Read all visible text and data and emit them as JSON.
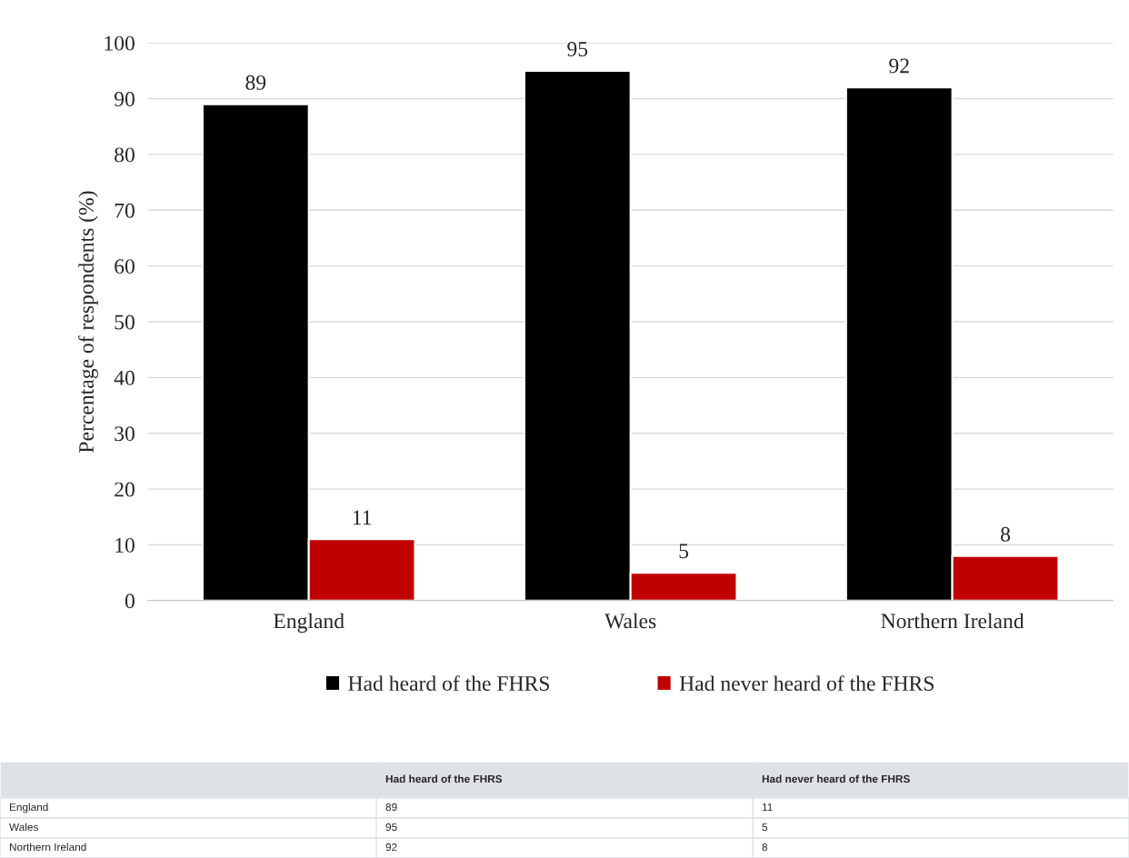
{
  "chart_data": [
    {
      "type": "bar",
      "ylabel": "Percentage of respondents (%)",
      "categories": [
        "England",
        "Wales",
        "Northern Ireland"
      ],
      "series": [
        {
          "name": "Had heard of the FHRS",
          "color": "#000000",
          "values": [
            89,
            95,
            92
          ]
        },
        {
          "name": "Had never heard of the FHRS",
          "color": "#c00000",
          "values": [
            11,
            5,
            8
          ]
        }
      ],
      "ylim": [
        0,
        100
      ],
      "yticks": [
        0,
        10,
        20,
        30,
        40,
        50,
        60,
        70,
        80,
        90,
        100
      ],
      "grid": "y",
      "legend": "bottom",
      "data_labels": true
    },
    {
      "type": "other",
      "categories": [
        "Had heard of the FHRS",
        "Had never heard of the FHRS"
      ],
      "y_categories": [
        "England",
        "Wales",
        "Northern Ireland"
      ],
      "cell_labels": [
        [
          "89",
          "11"
        ],
        [
          "95",
          "5"
        ],
        [
          "92",
          "8"
        ]
      ]
    }
  ]
}
